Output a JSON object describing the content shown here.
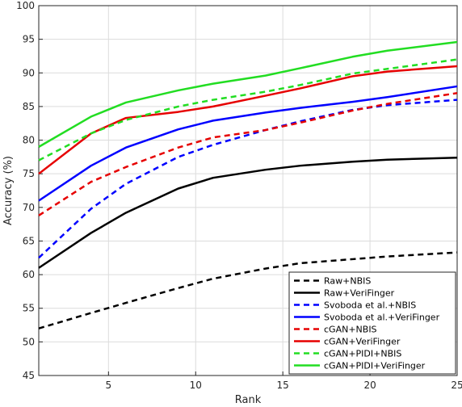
{
  "chart_data": {
    "type": "line",
    "xlabel": "Rank",
    "ylabel": "Accuracy (%)",
    "xlim": [
      1,
      25
    ],
    "ylim": [
      45,
      100
    ],
    "xticks": [
      5,
      10,
      15,
      20,
      25
    ],
    "yticks": [
      45,
      50,
      55,
      60,
      65,
      70,
      75,
      80,
      85,
      90,
      95,
      100
    ],
    "grid": true,
    "legend_position": "bottom-right",
    "x": [
      1,
      4,
      6,
      9,
      11,
      14,
      16,
      19,
      21,
      25
    ],
    "series": [
      {
        "name": "Raw+NBIS",
        "color": "#000000",
        "dash": true,
        "values": [
          52.0,
          54.3,
          55.8,
          58.0,
          59.4,
          60.9,
          61.7,
          62.3,
          62.7,
          63.3
        ]
      },
      {
        "name": "Raw+VeriFinger",
        "color": "#000000",
        "dash": false,
        "values": [
          61.0,
          66.2,
          69.2,
          72.8,
          74.4,
          75.6,
          76.2,
          76.8,
          77.1,
          77.4
        ]
      },
      {
        "name": "Svoboda et al.+NBIS",
        "color": "#0000ff",
        "dash": true,
        "values": [
          62.5,
          69.8,
          73.5,
          77.5,
          79.3,
          81.5,
          82.8,
          84.5,
          85.2,
          86.0
        ]
      },
      {
        "name": "Svoboda et al.+VeriFinger",
        "color": "#0000ff",
        "dash": false,
        "values": [
          71.0,
          76.2,
          78.9,
          81.6,
          82.9,
          84.1,
          84.8,
          85.7,
          86.4,
          88.0
        ]
      },
      {
        "name": "cGAN+NBIS",
        "color": "#e60000",
        "dash": true,
        "values": [
          68.8,
          73.8,
          76.0,
          78.9,
          80.4,
          81.5,
          82.6,
          84.4,
          85.4,
          87.0
        ]
      },
      {
        "name": "cGAN+VeriFinger",
        "color": "#e60000",
        "dash": false,
        "values": [
          75.0,
          81.0,
          83.3,
          84.2,
          85.0,
          86.6,
          87.7,
          89.5,
          90.2,
          91.0
        ]
      },
      {
        "name": "cGAN+PIDI+NBIS",
        "color": "#22dd22",
        "dash": true,
        "values": [
          77.0,
          81.0,
          83.0,
          85.0,
          86.0,
          87.2,
          88.2,
          89.9,
          90.6,
          92.0
        ]
      },
      {
        "name": "cGAN+PIDI+VeriFinger",
        "color": "#22dd22",
        "dash": false,
        "values": [
          79.0,
          83.5,
          85.6,
          87.4,
          88.4,
          89.6,
          90.7,
          92.4,
          93.3,
          94.6
        ]
      }
    ]
  }
}
